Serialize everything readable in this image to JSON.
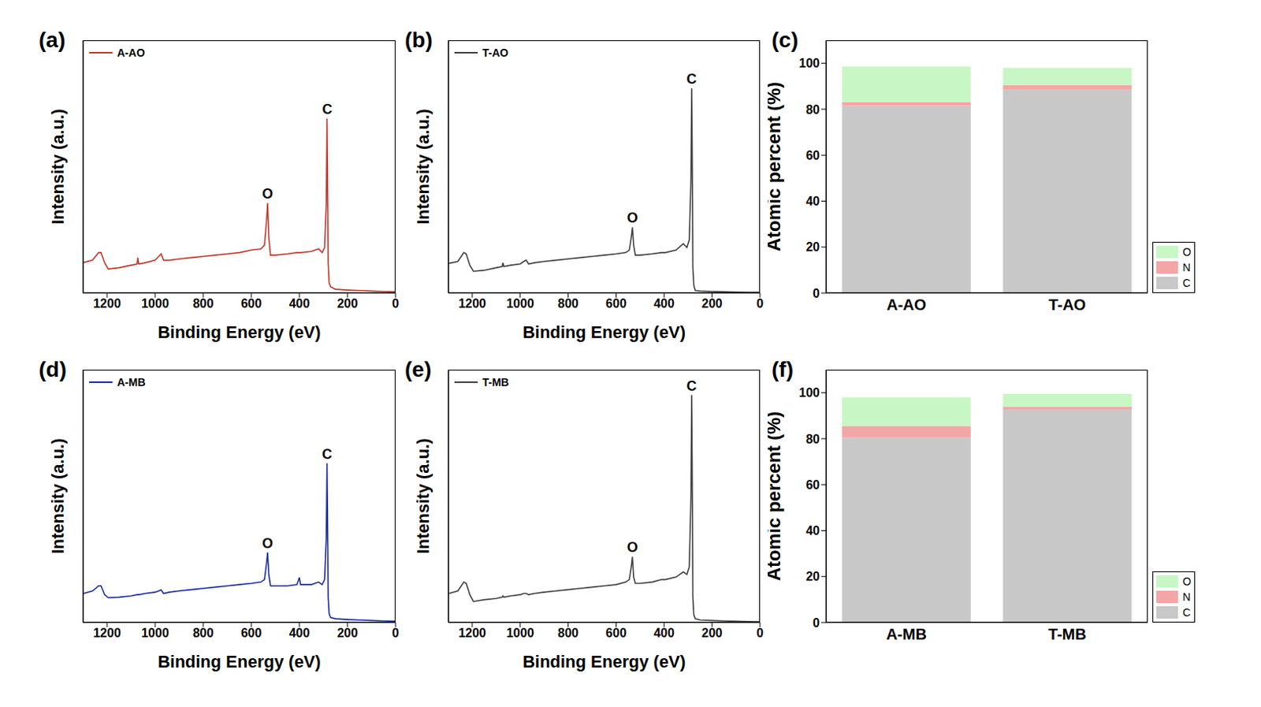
{
  "chart_data": [
    {
      "type": "line",
      "title": "(a)",
      "x_label": "Binding Energy (eV)",
      "y_label": "Intensity (a.u.)",
      "x": [
        1300,
        1260,
        1235,
        1225,
        1210,
        1195,
        1150,
        1100,
        1075,
        1072,
        1068,
        1040,
        1000,
        985,
        975,
        965,
        940,
        900,
        850,
        800,
        750,
        700,
        650,
        600,
        560,
        545,
        537,
        532,
        527,
        520,
        500,
        450,
        410,
        400,
        395,
        350,
        320,
        305,
        295,
        288,
        285,
        283,
        280,
        276,
        270,
        250,
        200,
        150,
        100,
        50,
        0
      ],
      "series": [
        {
          "name": "A-AO",
          "color": "#c0392b",
          "values": [
            12,
            13,
            16,
            16,
            12,
            9.5,
            10,
            11,
            11.5,
            14,
            11.5,
            12,
            13,
            14.5,
            15.5,
            13,
            13,
            13.5,
            14,
            14.5,
            15,
            15.5,
            16,
            17,
            17.5,
            19,
            28,
            35.6,
            22,
            15,
            15,
            15.5,
            16,
            16,
            16,
            16.5,
            17.5,
            16,
            18,
            35,
            69,
            50,
            12,
            4,
            2.5,
            1.5,
            1.2,
            1,
            0.8,
            0.6,
            0.5
          ]
        }
      ],
      "xlim": [
        1300,
        0
      ],
      "xticks": [
        0,
        200,
        400,
        600,
        800,
        1000,
        1200
      ],
      "ylim": [
        0,
        100
      ],
      "tick_labels": "x",
      "legend": "upper left",
      "grid": false,
      "annotations": [
        {
          "text": "C",
          "x": 284,
          "y": 69
        },
        {
          "text": "O",
          "x": 532,
          "y": 35.6
        }
      ]
    },
    {
      "type": "line",
      "title": "(b)",
      "x_label": "Binding Energy (eV)",
      "y_label": "Intensity (a.u.)",
      "x": [
        1300,
        1260,
        1235,
        1225,
        1210,
        1195,
        1150,
        1100,
        1075,
        1072,
        1068,
        1040,
        1000,
        985,
        975,
        965,
        940,
        900,
        850,
        800,
        750,
        700,
        650,
        600,
        560,
        545,
        537,
        532,
        527,
        520,
        500,
        450,
        410,
        400,
        395,
        350,
        320,
        305,
        295,
        288,
        285,
        283,
        280,
        276,
        270,
        250,
        200,
        150,
        100,
        50,
        0
      ],
      "series": [
        {
          "name": "T-AO",
          "color": "#404040",
          "values": [
            11.7,
            12.5,
            16,
            15.5,
            11,
            8.6,
            9,
            10,
            10.5,
            12,
            10.5,
            11,
            11.5,
            12.5,
            13,
            11.5,
            12,
            12.5,
            13,
            13.5,
            14,
            14.5,
            15,
            15.5,
            16,
            17,
            22,
            26,
            19,
            15,
            15,
            15.5,
            16,
            16,
            16,
            17,
            19.5,
            18,
            21,
            45,
            81,
            60,
            10,
            3,
            1,
            0.8,
            0.6,
            0.5,
            0.4,
            0.3,
            0.3
          ]
        }
      ],
      "xlim": [
        1300,
        0
      ],
      "xticks": [
        0,
        200,
        400,
        600,
        800,
        1000,
        1200
      ],
      "ylim": [
        0,
        100
      ],
      "tick_labels": "x",
      "legend": "upper left",
      "grid": false,
      "annotations": [
        {
          "text": "C",
          "x": 285,
          "y": 81
        },
        {
          "text": "O",
          "x": 532,
          "y": 26
        }
      ]
    },
    {
      "type": "bar",
      "title": "(c)",
      "y_label": "Atomic percent (%)",
      "categories": [
        "A-AO",
        "T-AO"
      ],
      "series": [
        {
          "name": "C",
          "color": "#c8c8c8",
          "values": [
            81.5,
            88.5
          ]
        },
        {
          "name": "N",
          "color": "#f4a6a6",
          "values": [
            1.5,
            2
          ]
        },
        {
          "name": "O",
          "color": "#c8f7c5",
          "values": [
            15.5,
            7.5
          ]
        }
      ],
      "stacked": true,
      "ylim": [
        0,
        110
      ],
      "yticks": [
        0,
        20,
        40,
        60,
        80,
        100
      ],
      "legend": "lower right",
      "grid": false
    },
    {
      "type": "line",
      "title": "(d)",
      "x_label": "Binding Energy (eV)",
      "y_label": "Intensity (a.u.)",
      "x": [
        1300,
        1260,
        1235,
        1225,
        1210,
        1195,
        1150,
        1100,
        1075,
        1072,
        1068,
        1040,
        1000,
        985,
        975,
        965,
        940,
        900,
        850,
        800,
        750,
        700,
        650,
        600,
        560,
        545,
        537,
        532,
        527,
        520,
        500,
        450,
        410,
        400,
        395,
        350,
        320,
        305,
        295,
        288,
        285,
        283,
        280,
        276,
        270,
        250,
        200,
        150,
        100,
        50,
        0
      ],
      "series": [
        {
          "name": "A-MB",
          "color": "#1a2ca0",
          "values": [
            11.4,
            12.5,
            14.5,
            14.5,
            11,
            9.8,
            10,
            10.5,
            11,
            11,
            11,
            11.5,
            12,
            12.5,
            12.9,
            11.5,
            12,
            12.5,
            13,
            13.5,
            14,
            14.5,
            15,
            15.5,
            16,
            17,
            23,
            27.7,
            19,
            14.5,
            14.5,
            14.5,
            15,
            17.8,
            15,
            15,
            16,
            15,
            17,
            33,
            63,
            45,
            10,
            3.5,
            2,
            1.5,
            1.2,
            1,
            0.8,
            0.6,
            0.5
          ]
        }
      ],
      "xlim": [
        1300,
        0
      ],
      "xticks": [
        0,
        200,
        400,
        600,
        800,
        1000,
        1200
      ],
      "ylim": [
        0,
        100
      ],
      "tick_labels": "x",
      "legend": "upper left",
      "grid": false,
      "annotations": [
        {
          "text": "C",
          "x": 285,
          "y": 63
        },
        {
          "text": "O",
          "x": 532,
          "y": 27.7
        }
      ]
    },
    {
      "type": "line",
      "title": "(e)",
      "x_label": "Binding Energy (eV)",
      "y_label": "Intensity (a.u.)",
      "x": [
        1300,
        1260,
        1235,
        1225,
        1210,
        1195,
        1150,
        1100,
        1075,
        1072,
        1068,
        1040,
        1000,
        985,
        975,
        965,
        940,
        900,
        850,
        800,
        750,
        700,
        650,
        600,
        560,
        545,
        537,
        532,
        527,
        520,
        500,
        450,
        410,
        400,
        395,
        350,
        320,
        305,
        295,
        288,
        285,
        283,
        280,
        276,
        270,
        250,
        200,
        150,
        100,
        50,
        0
      ],
      "series": [
        {
          "name": "T-MB",
          "color": "#404040",
          "values": [
            11.4,
            12.5,
            16,
            15.5,
            11,
            8.3,
            9,
            9.5,
            10,
            10.5,
            10,
            10.5,
            11,
            11.5,
            11.5,
            11,
            11.5,
            12,
            12.5,
            13,
            13.5,
            14,
            14.5,
            15,
            16,
            17,
            22,
            26,
            18,
            15.5,
            15.5,
            16,
            17,
            17,
            17,
            18,
            20,
            19,
            22,
            50,
            90,
            65,
            10,
            3,
            1.5,
            1,
            0.8,
            0.6,
            0.5,
            0.4,
            0.3
          ]
        }
      ],
      "xlim": [
        1300,
        0
      ],
      "xticks": [
        0,
        200,
        400,
        600,
        800,
        1000,
        1200
      ],
      "ylim": [
        0,
        100
      ],
      "tick_labels": "x",
      "legend": "upper left",
      "grid": false,
      "annotations": [
        {
          "text": "C",
          "x": 285,
          "y": 90
        },
        {
          "text": "O",
          "x": 532,
          "y": 26
        }
      ]
    },
    {
      "type": "bar",
      "title": "(f)",
      "y_label": "Atomic percent (%)",
      "categories": [
        "A-MB",
        "T-MB"
      ],
      "series": [
        {
          "name": "C",
          "color": "#c8c8c8",
          "values": [
            80.5,
            92.5
          ]
        },
        {
          "name": "N",
          "color": "#f4a6a6",
          "values": [
            5,
            1.5
          ]
        },
        {
          "name": "O",
          "color": "#c8f7c5",
          "values": [
            12.5,
            5.5
          ]
        }
      ],
      "stacked": true,
      "ylim": [
        0,
        110
      ],
      "yticks": [
        0,
        20,
        40,
        60,
        80,
        100
      ],
      "legend": "lower right",
      "grid": false
    }
  ]
}
